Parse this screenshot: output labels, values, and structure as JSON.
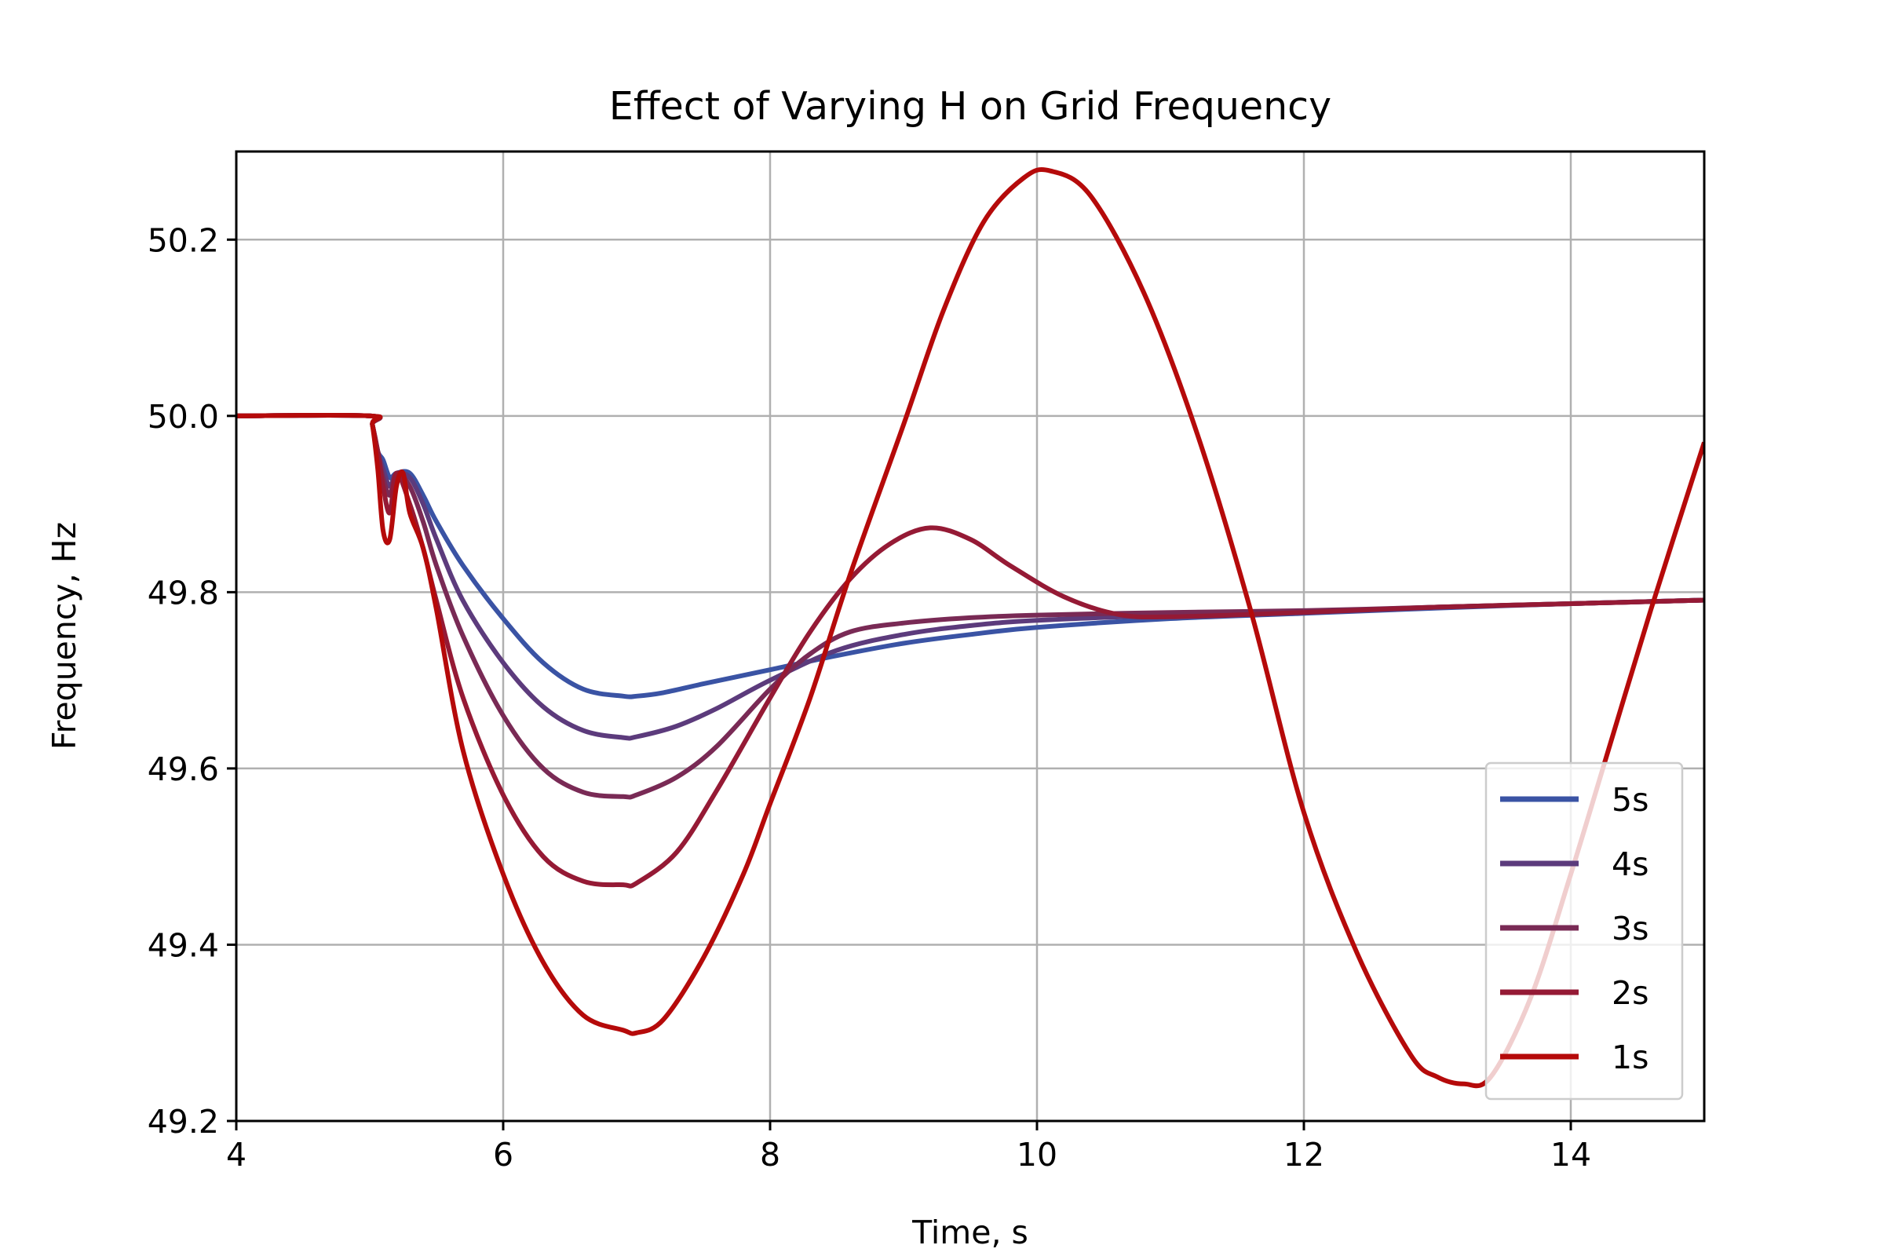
{
  "chart_data": {
    "type": "line",
    "title": "Effect of Varying H on Grid Frequency",
    "xlabel": "Time, s",
    "ylabel": "Frequency, Hz",
    "xlim": [
      4,
      15
    ],
    "ylim": [
      49.2,
      50.3
    ],
    "xticks": [
      4,
      6,
      8,
      10,
      12,
      14
    ],
    "yticks": [
      49.2,
      49.4,
      49.6,
      49.8,
      50.0,
      50.2
    ],
    "xtick_labels": [
      "4",
      "6",
      "8",
      "10",
      "12",
      "14"
    ],
    "ytick_labels": [
      "49.2",
      "49.4",
      "49.6",
      "49.8",
      "50.0",
      "50.2"
    ],
    "grid": true,
    "legend_position": "lower-right",
    "series": [
      {
        "name": "5s",
        "color": "#3a53a4",
        "x": [
          4,
          5.0,
          5.02,
          5.06,
          5.1,
          5.15,
          5.2,
          5.3,
          5.4,
          5.5,
          5.7,
          6.0,
          6.3,
          6.6,
          6.9,
          7.0,
          7.2,
          7.5,
          8.0,
          8.5,
          9.0,
          9.5,
          10.0,
          11.0,
          12.0,
          13.0,
          14.0,
          15.0
        ],
        "y": [
          50.0,
          50.0,
          49.99,
          49.96,
          49.95,
          49.93,
          49.935,
          49.935,
          49.91,
          49.88,
          49.83,
          49.77,
          49.72,
          49.69,
          49.682,
          49.682,
          49.686,
          49.696,
          49.712,
          49.728,
          49.742,
          49.752,
          49.76,
          49.77,
          49.776,
          49.782,
          49.787,
          49.791
        ]
      },
      {
        "name": "4s",
        "color": "#5c3b7c",
        "x": [
          4,
          5.0,
          5.02,
          5.06,
          5.1,
          5.15,
          5.2,
          5.3,
          5.4,
          5.5,
          5.7,
          6.0,
          6.3,
          6.6,
          6.9,
          7.0,
          7.3,
          7.6,
          8.0,
          8.5,
          9.0,
          9.5,
          10.0,
          11.0,
          12.0,
          13.0,
          14.0,
          15.0
        ],
        "y": [
          50.0,
          50.0,
          49.99,
          49.96,
          49.94,
          49.92,
          49.935,
          49.93,
          49.9,
          49.86,
          49.79,
          49.72,
          49.67,
          49.643,
          49.635,
          49.636,
          49.648,
          49.668,
          49.7,
          49.734,
          49.752,
          49.762,
          49.768,
          49.774,
          49.778,
          49.783,
          49.787,
          49.791
        ]
      },
      {
        "name": "3s",
        "color": "#792a55",
        "x": [
          4,
          5.0,
          5.02,
          5.06,
          5.1,
          5.15,
          5.2,
          5.3,
          5.4,
          5.5,
          5.7,
          6.0,
          6.3,
          6.6,
          6.9,
          7.0,
          7.3,
          7.6,
          8.0,
          8.3,
          8.6,
          9.0,
          9.5,
          10.0,
          11.0,
          12.0,
          13.0,
          14.0,
          15.0
        ],
        "y": [
          50.0,
          50.0,
          49.99,
          49.96,
          49.93,
          49.91,
          49.935,
          49.92,
          49.88,
          49.83,
          49.75,
          49.66,
          49.6,
          49.573,
          49.568,
          49.57,
          49.59,
          49.625,
          49.69,
          49.73,
          49.755,
          49.765,
          49.771,
          49.774,
          49.777,
          49.779,
          49.783,
          49.787,
          49.791
        ]
      },
      {
        "name": "2s",
        "color": "#951a35",
        "x": [
          4,
          5.0,
          5.02,
          5.06,
          5.1,
          5.15,
          5.2,
          5.3,
          5.4,
          5.5,
          5.7,
          6.0,
          6.3,
          6.6,
          6.9,
          7.0,
          7.3,
          7.6,
          8.0,
          8.3,
          8.6,
          8.9,
          9.2,
          9.5,
          9.8,
          10.2,
          10.6,
          11.0,
          12.0,
          13.0,
          14.0,
          15.0
        ],
        "y": [
          50.0,
          50.0,
          49.99,
          49.96,
          49.92,
          49.89,
          49.935,
          49.9,
          49.85,
          49.79,
          49.68,
          49.57,
          49.5,
          49.472,
          49.468,
          49.47,
          49.505,
          49.575,
          49.68,
          49.755,
          49.815,
          49.855,
          49.873,
          49.86,
          49.83,
          49.795,
          49.775,
          49.772,
          49.777,
          49.783,
          49.787,
          49.791
        ]
      },
      {
        "name": "1s",
        "color": "#b50a0a",
        "x": [
          4,
          5.0,
          5.02,
          5.06,
          5.1,
          5.15,
          5.2,
          5.25,
          5.3,
          5.4,
          5.5,
          5.7,
          6.0,
          6.3,
          6.6,
          6.9,
          7.0,
          7.2,
          7.5,
          7.8,
          8.0,
          8.3,
          8.6,
          9.0,
          9.3,
          9.6,
          9.9,
          10.1,
          10.4,
          10.8,
          11.2,
          11.6,
          12.0,
          12.4,
          12.8,
          13.0,
          13.2,
          13.4,
          13.7,
          14.0,
          14.3,
          14.6,
          15.0
        ],
        "y": [
          50.0,
          50.0,
          49.99,
          49.94,
          49.87,
          49.86,
          49.92,
          49.935,
          49.89,
          49.85,
          49.78,
          49.62,
          49.48,
          49.38,
          49.32,
          49.303,
          49.3,
          49.315,
          49.385,
          49.48,
          49.56,
          49.68,
          49.82,
          49.99,
          50.12,
          50.22,
          50.27,
          50.278,
          50.25,
          50.14,
          49.98,
          49.78,
          49.55,
          49.39,
          49.275,
          49.25,
          49.242,
          49.25,
          49.34,
          49.48,
          49.63,
          49.78,
          49.97
        ]
      }
    ]
  }
}
